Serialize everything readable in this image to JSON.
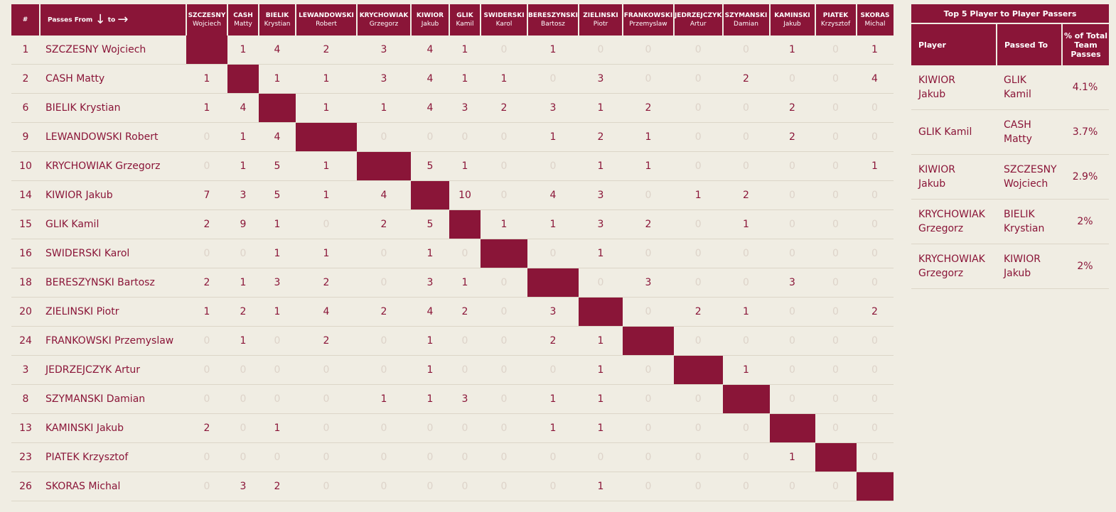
{
  "matrix": {
    "hash_label": "#",
    "passes_from_label": "Passes From",
    "to_label": "to",
    "players": [
      {
        "num": "1",
        "name": "SZCZESNY Wojciech",
        "head1": "SZCZESNY",
        "head2": "Wojciech"
      },
      {
        "num": "2",
        "name": "CASH Matty",
        "head1": "CASH",
        "head2": "Matty"
      },
      {
        "num": "6",
        "name": "BIELIK Krystian",
        "head1": "BIELIK",
        "head2": "Krystian"
      },
      {
        "num": "9",
        "name": "LEWANDOWSKI Robert",
        "head1": "LEWANDOWSKI",
        "head2": "Robert"
      },
      {
        "num": "10",
        "name": "KRYCHOWIAK Grzegorz",
        "head1": "KRYCHOWIAK",
        "head2": "Grzegorz"
      },
      {
        "num": "14",
        "name": "KIWIOR Jakub",
        "head1": "KIWIOR",
        "head2": "Jakub"
      },
      {
        "num": "15",
        "name": "GLIK Kamil",
        "head1": "GLIK",
        "head2": "Kamil"
      },
      {
        "num": "16",
        "name": "SWIDERSKI Karol",
        "head1": "SWIDERSKI",
        "head2": "Karol"
      },
      {
        "num": "18",
        "name": "BERESZYNSKI Bartosz",
        "head1": "BERESZYNSKI",
        "head2": "Bartosz"
      },
      {
        "num": "20",
        "name": "ZIELINSKI Piotr",
        "head1": "ZIELINSKI",
        "head2": "Piotr"
      },
      {
        "num": "24",
        "name": "FRANKOWSKI Przemyslaw",
        "head1": "FRANKOWSKI",
        "head2": "Przemyslaw"
      },
      {
        "num": "3",
        "name": "JEDRZEJCZYK Artur",
        "head1": "JEDRZEJCZYK",
        "head2": "Artur"
      },
      {
        "num": "8",
        "name": "SZYMANSKI Damian",
        "head1": "SZYMANSKI",
        "head2": "Damian"
      },
      {
        "num": "13",
        "name": "KAMINSKI Jakub",
        "head1": "KAMINSKI",
        "head2": "Jakub"
      },
      {
        "num": "23",
        "name": "PIATEK Krzysztof",
        "head1": "PIATEK",
        "head2": "Krzysztof"
      },
      {
        "num": "26",
        "name": "SKORAS Michal",
        "head1": "SKORAS",
        "head2": "Michal"
      }
    ],
    "values": [
      [
        null,
        1,
        4,
        2,
        3,
        4,
        1,
        0,
        1,
        0,
        0,
        0,
        0,
        1,
        0,
        1
      ],
      [
        1,
        null,
        1,
        1,
        3,
        4,
        1,
        1,
        0,
        3,
        0,
        0,
        2,
        0,
        0,
        4
      ],
      [
        1,
        4,
        null,
        1,
        1,
        4,
        3,
        2,
        3,
        1,
        2,
        0,
        0,
        2,
        0,
        0
      ],
      [
        0,
        1,
        4,
        null,
        0,
        0,
        0,
        0,
        1,
        2,
        1,
        0,
        0,
        2,
        0,
        0
      ],
      [
        0,
        1,
        5,
        1,
        null,
        5,
        1,
        0,
        0,
        1,
        1,
        0,
        0,
        0,
        0,
        1
      ],
      [
        7,
        3,
        5,
        1,
        4,
        null,
        10,
        0,
        4,
        3,
        0,
        1,
        2,
        0,
        0,
        0
      ],
      [
        2,
        9,
        1,
        0,
        2,
        5,
        null,
        1,
        1,
        3,
        2,
        0,
        1,
        0,
        0,
        0
      ],
      [
        0,
        0,
        1,
        1,
        0,
        1,
        0,
        null,
        0,
        1,
        0,
        0,
        0,
        0,
        0,
        0
      ],
      [
        2,
        1,
        3,
        2,
        0,
        3,
        1,
        0,
        null,
        0,
        3,
        0,
        0,
        3,
        0,
        0
      ],
      [
        1,
        2,
        1,
        4,
        2,
        4,
        2,
        0,
        3,
        null,
        0,
        2,
        1,
        0,
        0,
        2
      ],
      [
        0,
        1,
        0,
        2,
        0,
        1,
        0,
        0,
        2,
        1,
        null,
        0,
        0,
        0,
        0,
        0
      ],
      [
        0,
        0,
        0,
        0,
        0,
        1,
        0,
        0,
        0,
        1,
        0,
        null,
        1,
        0,
        0,
        0
      ],
      [
        0,
        0,
        0,
        0,
        1,
        1,
        3,
        0,
        1,
        1,
        0,
        0,
        null,
        0,
        0,
        0
      ],
      [
        2,
        0,
        1,
        0,
        0,
        0,
        0,
        0,
        1,
        1,
        0,
        0,
        0,
        null,
        0,
        0
      ],
      [
        0,
        0,
        0,
        0,
        0,
        0,
        0,
        0,
        0,
        0,
        0,
        0,
        0,
        1,
        null,
        0
      ],
      [
        0,
        3,
        2,
        0,
        0,
        0,
        0,
        0,
        0,
        1,
        0,
        0,
        0,
        0,
        0,
        null
      ]
    ]
  },
  "top5": {
    "title": "Top 5 Player to Player Passers",
    "col_player": "Player",
    "col_passed_to": "Passed To",
    "col_pct": "% of Total Team Passes",
    "rows": [
      {
        "p1": "KIWIOR",
        "p2": "Jakub",
        "t1": "GLIK",
        "t2": "Kamil",
        "pct": "4.1%"
      },
      {
        "p1": "GLIK Kamil",
        "p2": "",
        "t1": "CASH",
        "t2": "Matty",
        "pct": "3.7%"
      },
      {
        "p1": "KIWIOR",
        "p2": "Jakub",
        "t1": "SZCZESNY",
        "t2": "Wojciech",
        "pct": "2.9%"
      },
      {
        "p1": "KRYCHOWIAK",
        "p2": "Grzegorz",
        "t1": "BIELIK",
        "t2": "Krystian",
        "pct": "2%"
      },
      {
        "p1": "KRYCHOWIAK",
        "p2": "Grzegorz",
        "t1": "KIWIOR",
        "t2": "Jakub",
        "pct": "2%"
      }
    ]
  },
  "colors": {
    "primary": "#8a1538",
    "background": "#f0ede3",
    "zero_text": "#ddd3c9"
  },
  "icons": {
    "arrow_down": "arrow-down-icon",
    "arrow_right": "arrow-right-icon"
  }
}
